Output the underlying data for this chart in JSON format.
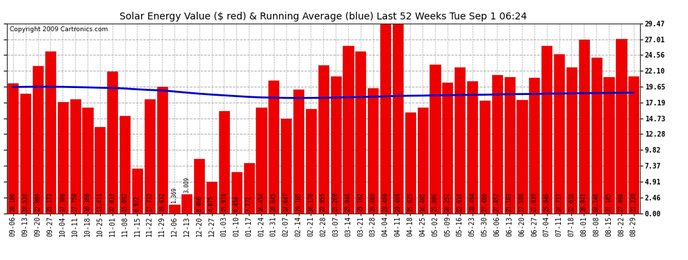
{
  "title": "Solar Energy Value ($ red) & Running Average (blue) Last 52 Weeks Tue Sep 1 06:24",
  "copyright": "Copyright 2009 Cartronics.com",
  "bar_color": "#ee0000",
  "avg_line_color": "#0000cc",
  "background_color": "#ffffff",
  "plot_bg_color": "#ffffff",
  "grid_color": "#aaaaaa",
  "yticks": [
    0.0,
    2.46,
    4.91,
    7.37,
    9.82,
    12.28,
    14.73,
    17.19,
    19.65,
    22.1,
    24.56,
    27.01,
    29.47
  ],
  "ylim": [
    0.0,
    29.47
  ],
  "categories": [
    "09-06",
    "09-13",
    "09-20",
    "09-27",
    "10-04",
    "10-11",
    "10-18",
    "10-25",
    "11-01",
    "11-08",
    "11-15",
    "11-22",
    "11-29",
    "12-06",
    "12-13",
    "12-20",
    "12-27",
    "01-03",
    "01-10",
    "01-17",
    "01-24",
    "01-31",
    "02-07",
    "02-14",
    "02-21",
    "02-28",
    "03-07",
    "03-14",
    "03-21",
    "03-28",
    "04-04",
    "04-11",
    "04-18",
    "04-25",
    "05-02",
    "05-09",
    "05-16",
    "05-23",
    "05-30",
    "06-06",
    "06-13",
    "06-20",
    "06-27",
    "07-04",
    "07-11",
    "07-18",
    "08-01",
    "08-08",
    "08-15",
    "08-22",
    "08-29"
  ],
  "values": [
    20.186,
    18.52,
    22.889,
    25.172,
    17.309,
    17.758,
    16.368,
    13.411,
    22.033,
    15.092,
    6.922,
    17.732,
    19.632,
    1.369,
    3.009,
    8.466,
    4.875,
    15.91,
    6.454,
    7.772,
    16.454,
    20.645,
    14.647,
    19.165,
    16.178,
    22.955,
    21.269,
    25.946,
    25.162,
    19.469,
    29.469,
    29.469,
    15.625,
    16.405,
    23.086,
    20.251,
    22.616,
    20.494,
    17.486,
    21.452,
    21.103,
    17.598,
    21.039,
    25.946,
    24.717,
    22.61,
    26.941,
    24.146,
    21.185,
    27.098,
    21.239
  ],
  "running_avg": [
    19.6,
    19.62,
    19.64,
    19.64,
    19.62,
    19.58,
    19.54,
    19.48,
    19.44,
    19.36,
    19.24,
    19.14,
    19.06,
    18.9,
    18.72,
    18.56,
    18.42,
    18.3,
    18.18,
    18.06,
    17.98,
    17.94,
    17.9,
    17.9,
    17.9,
    17.92,
    17.96,
    18.0,
    18.04,
    18.08,
    18.14,
    18.22,
    18.24,
    18.26,
    18.3,
    18.32,
    18.36,
    18.38,
    18.4,
    18.44,
    18.48,
    18.5,
    18.52,
    18.56,
    18.58,
    18.6,
    18.64,
    18.66,
    18.68,
    18.7,
    18.72
  ],
  "title_fontsize": 10,
  "tick_fontsize": 7,
  "label_fontsize": 5.5,
  "copyright_fontsize": 6.5
}
